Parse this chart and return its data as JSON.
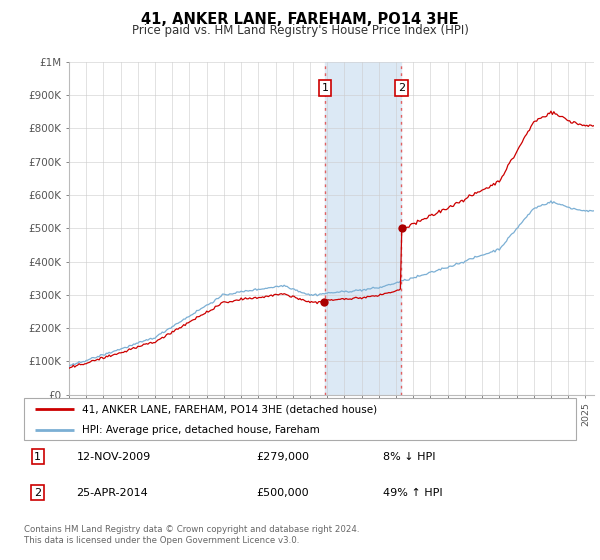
{
  "title": "41, ANKER LANE, FAREHAM, PO14 3HE",
  "subtitle": "Price paid vs. HM Land Registry's House Price Index (HPI)",
  "legend_line1": "41, ANKER LANE, FAREHAM, PO14 3HE (detached house)",
  "legend_line2": "HPI: Average price, detached house, Fareham",
  "transaction1_date": "12-NOV-2009",
  "transaction1_price": 279000,
  "transaction1_pct": "8% ↓ HPI",
  "transaction1_year": 2009.87,
  "transaction2_date": "25-APR-2014",
  "transaction2_price": 500000,
  "transaction2_pct": "49% ↑ HPI",
  "transaction2_year": 2014.31,
  "footnote": "Contains HM Land Registry data © Crown copyright and database right 2024.\nThis data is licensed under the Open Government Licence v3.0.",
  "ylim": [
    0,
    1000000
  ],
  "xlim_start": 1995.0,
  "xlim_end": 2025.5,
  "line_color_prop": "#cc0000",
  "line_color_hpi": "#7bafd4",
  "shade_color": "#dce9f5",
  "marker_color": "#aa0000",
  "bg_color": "#ffffff",
  "grid_color": "#cccccc"
}
